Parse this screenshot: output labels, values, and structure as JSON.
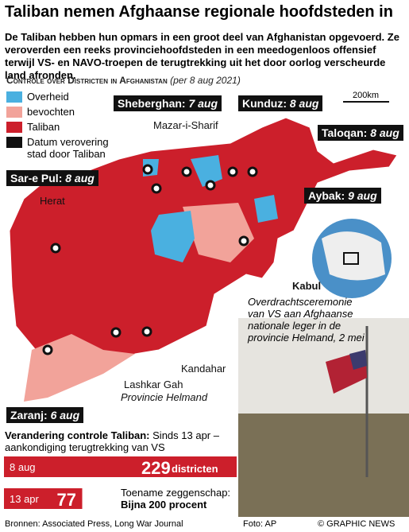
{
  "header": {
    "title": "Taliban nemen Afghaanse regionale hoofdsteden in",
    "intro": "De Taliban hebben hun opmars in een groot deel van Afghanistan opgevoerd. Ze veroverden een reeks provinciehoofdsteden in een meedogenloos offensief terwijl VS- en NAVO-troepen de terugtrekking uit het door oorlog verscheurde land afronden."
  },
  "map": {
    "heading": "Controle over Districten in Afghanistan",
    "date": "(per 8 aug 2021)",
    "legend": [
      "Overheid",
      "bevochten",
      "Taliban",
      "Datum verovering stad door Taliban"
    ],
    "scale": "200km",
    "captured": [
      {
        "city": "Sheberghan:",
        "date": "7 aug"
      },
      {
        "city": "Kunduz:",
        "date": "8 aug"
      },
      {
        "city": "Taloqan:",
        "date": "8 aug"
      },
      {
        "city": "Sar-e Pul:",
        "date": "8 aug"
      },
      {
        "city": "Aybak:",
        "date": "9 aug"
      },
      {
        "city": "Zaranj:",
        "date": "6 aug"
      }
    ],
    "cities": [
      "Mazar-i-Sharif",
      "Herat",
      "Kandahar",
      "Kabul",
      "Lashkar Gah",
      "Provincie Helmand"
    ]
  },
  "photo": {
    "caption": "Overdrachtsceremonie van VS aan Afghaanse nationale leger in de provincie Helmand, 2 mei",
    "credit": "Foto: AP"
  },
  "stats": {
    "heading": "Verandering controle Taliban:",
    "subheading": "Sinds 13 apr – aankondiging terugtrekking van VS",
    "rows": [
      {
        "date": "8 aug",
        "value": 229,
        "unit": "districten"
      },
      {
        "date": "13 apr",
        "value": 77
      }
    ],
    "increase_label": "Toename zeggenschap:",
    "increase": "Bijna 200 procent"
  },
  "footer": {
    "sources": "Bronnen: Associated Press, Long War Journal",
    "copyright": "© GRAPHIC NEWS"
  }
}
